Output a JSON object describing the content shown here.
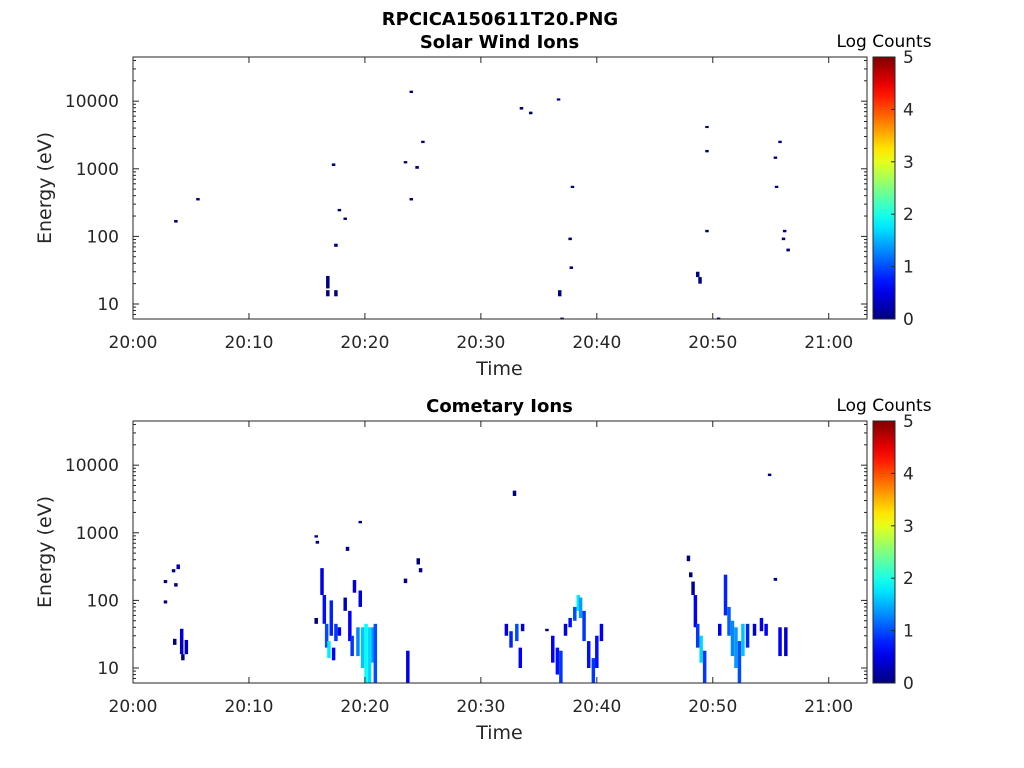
{
  "figure_title": "RPCICA150611T20.PNG",
  "colors": {
    "axis": "#262626",
    "colormap": "jet"
  },
  "chart_data": [
    {
      "type": "heatmap",
      "title": "Solar Wind Ions",
      "xlabel": "Time",
      "ylabel": "Energy (eV)",
      "x_ticks": [
        "20:00",
        "20:10",
        "20:20",
        "20:30",
        "20:40",
        "20:50",
        "21:00"
      ],
      "x_tick_minutes": [
        0,
        10,
        20,
        30,
        40,
        50,
        60
      ],
      "xlim_minutes": [
        0,
        63.3
      ],
      "y_scale": "log",
      "ylim": [
        6,
        45000
      ],
      "y_ticks": [
        "10",
        "100",
        "1000",
        "10000"
      ],
      "y_tick_values": [
        10,
        100,
        1000,
        10000
      ],
      "colorbar": {
        "label": "Log Counts",
        "range": [
          0,
          5
        ],
        "ticks": [
          "0",
          "1",
          "2",
          "3",
          "4",
          "5"
        ]
      },
      "points_format": "[minute, energy_low_eV, energy_high_eV, log_counts]",
      "points": [
        [
          3.7,
          160,
          175,
          0
        ],
        [
          5.6,
          340,
          370,
          0
        ],
        [
          16.8,
          17,
          26,
          0
        ],
        [
          16.8,
          13,
          16,
          0
        ],
        [
          17.5,
          13,
          16,
          0
        ],
        [
          17.5,
          70,
          78,
          0
        ],
        [
          17.3,
          1100,
          1200,
          0
        ],
        [
          17.8,
          235,
          255,
          0
        ],
        [
          18.3,
          175,
          190,
          0
        ],
        [
          23.5,
          1200,
          1300,
          0
        ],
        [
          24.0,
          13200,
          14300,
          0
        ],
        [
          24.0,
          340,
          370,
          0
        ],
        [
          24.5,
          1000,
          1100,
          0
        ],
        [
          25.0,
          2400,
          2600,
          0
        ],
        [
          33.5,
          7500,
          8200,
          0
        ],
        [
          34.3,
          6400,
          7000,
          0
        ],
        [
          36.7,
          10200,
          11000,
          0
        ],
        [
          36.8,
          13,
          16,
          0
        ],
        [
          37.0,
          6,
          6.3,
          0
        ],
        [
          37.7,
          88,
          96,
          0
        ],
        [
          37.8,
          33,
          36,
          0
        ],
        [
          37.9,
          520,
          560,
          0
        ],
        [
          48.7,
          25,
          30,
          0
        ],
        [
          48.9,
          20,
          25,
          0
        ],
        [
          49.5,
          4000,
          4300,
          0
        ],
        [
          49.5,
          1750,
          1900,
          0
        ],
        [
          49.5,
          115,
          125,
          0
        ],
        [
          50.5,
          6,
          6.3,
          0
        ],
        [
          55.4,
          1400,
          1520,
          0
        ],
        [
          55.5,
          520,
          560,
          0
        ],
        [
          55.8,
          2400,
          2600,
          0
        ],
        [
          56.1,
          88,
          96,
          0
        ],
        [
          56.2,
          115,
          125,
          0
        ],
        [
          56.5,
          60,
          66,
          0
        ]
      ]
    },
    {
      "type": "heatmap",
      "title": "Cometary Ions",
      "xlabel": "Time",
      "ylabel": "Energy (eV)",
      "x_ticks": [
        "20:00",
        "20:10",
        "20:20",
        "20:30",
        "20:40",
        "20:50",
        "21:00"
      ],
      "x_tick_minutes": [
        0,
        10,
        20,
        30,
        40,
        50,
        60
      ],
      "xlim_minutes": [
        0,
        63.3
      ],
      "y_scale": "log",
      "ylim": [
        6,
        45000
      ],
      "y_ticks": [
        "10",
        "100",
        "1000",
        "10000"
      ],
      "y_tick_values": [
        10,
        100,
        1000,
        10000
      ],
      "colorbar": {
        "label": "Log Counts",
        "range": [
          0,
          5
        ],
        "ticks": [
          "0",
          "1",
          "2",
          "3",
          "4",
          "5"
        ]
      },
      "points_format": "[minute, energy_low_eV, energy_high_eV, log_counts]",
      "points": [
        [
          2.8,
          180,
          200,
          0
        ],
        [
          2.8,
          90,
          100,
          0
        ],
        [
          3.5,
          260,
          290,
          0
        ],
        [
          3.7,
          160,
          180,
          0
        ],
        [
          3.6,
          22,
          27,
          0
        ],
        [
          3.9,
          290,
          340,
          0.3
        ],
        [
          4.2,
          16,
          38,
          0.4
        ],
        [
          4.3,
          13,
          16,
          0
        ],
        [
          4.6,
          16,
          26,
          0.3
        ],
        [
          15.8,
          850,
          920,
          0
        ],
        [
          15.9,
          690,
          760,
          0
        ],
        [
          15.8,
          45,
          55,
          0
        ],
        [
          16.3,
          120,
          300,
          0.5
        ],
        [
          16.5,
          45,
          120,
          0.7
        ],
        [
          16.7,
          20,
          45,
          1.0
        ],
        [
          16.9,
          14,
          25,
          1.8
        ],
        [
          17.1,
          30,
          100,
          0.8
        ],
        [
          17.3,
          13,
          20,
          0.6
        ],
        [
          17.5,
          25,
          45,
          0.9
        ],
        [
          17.8,
          30,
          40,
          0.5
        ],
        [
          18.5,
          540,
          620,
          0
        ],
        [
          18.3,
          70,
          110,
          0.3
        ],
        [
          18.7,
          25,
          70,
          0.6
        ],
        [
          18.9,
          15,
          30,
          0.9
        ],
        [
          19.1,
          130,
          200,
          0.4
        ],
        [
          19.4,
          15,
          40,
          1.3
        ],
        [
          19.6,
          1380,
          1500,
          0
        ],
        [
          19.6,
          80,
          140,
          0.5
        ],
        [
          19.8,
          10,
          40,
          1.6
        ],
        [
          20.1,
          6,
          45,
          1.9
        ],
        [
          20.4,
          6,
          40,
          1.7
        ],
        [
          20.7,
          12,
          40,
          1.4
        ],
        [
          20.9,
          6,
          45,
          1.0
        ],
        [
          23.5,
          180,
          210,
          0
        ],
        [
          23.7,
          6,
          18,
          0.5
        ],
        [
          24.6,
          340,
          420,
          0
        ],
        [
          24.8,
          260,
          300,
          0
        ],
        [
          32.9,
          3500,
          4200,
          0
        ],
        [
          32.2,
          30,
          45,
          0.5
        ],
        [
          32.6,
          20,
          35,
          0.8
        ],
        [
          33.1,
          25,
          45,
          1.0
        ],
        [
          33.4,
          10,
          20,
          0.6
        ],
        [
          33.6,
          35,
          45,
          0.4
        ],
        [
          35.7,
          35,
          38,
          0
        ],
        [
          36.2,
          12,
          30,
          0.6
        ],
        [
          36.6,
          8,
          20,
          0.7
        ],
        [
          36.9,
          6,
          18,
          0.9
        ],
        [
          37.3,
          30,
          45,
          0.5
        ],
        [
          37.7,
          40,
          55,
          0.7
        ],
        [
          38.1,
          50,
          80,
          1.0
        ],
        [
          38.4,
          70,
          120,
          1.8
        ],
        [
          38.6,
          55,
          110,
          1.4
        ],
        [
          38.9,
          25,
          70,
          0.9
        ],
        [
          39.3,
          10,
          25,
          0.7
        ],
        [
          39.7,
          6,
          14,
          0.9
        ],
        [
          40.0,
          10,
          30,
          0.7
        ],
        [
          40.4,
          25,
          45,
          0.6
        ],
        [
          47.9,
          380,
          460,
          0
        ],
        [
          48.1,
          220,
          260,
          0
        ],
        [
          48.3,
          120,
          190,
          0.2
        ],
        [
          48.5,
          40,
          120,
          0.6
        ],
        [
          48.7,
          20,
          45,
          0.9
        ],
        [
          49.0,
          12,
          30,
          1.7
        ],
        [
          49.3,
          6,
          18,
          0.9
        ],
        [
          50.6,
          30,
          45,
          0.5
        ],
        [
          51.1,
          60,
          240,
          0.8
        ],
        [
          51.4,
          30,
          80,
          1.1
        ],
        [
          51.7,
          15,
          50,
          1.3
        ],
        [
          52.0,
          10,
          40,
          1.4
        ],
        [
          52.3,
          6,
          25,
          1.0
        ],
        [
          52.6,
          15,
          45,
          1.6
        ],
        [
          53.0,
          20,
          45,
          0.8
        ],
        [
          53.6,
          30,
          45,
          0.4
        ],
        [
          54.2,
          35,
          55,
          0.5
        ],
        [
          54.6,
          30,
          45,
          0.6
        ],
        [
          55.4,
          195,
          215,
          0
        ],
        [
          54.9,
          6900,
          7500,
          0
        ],
        [
          55.8,
          15,
          40,
          0.6
        ],
        [
          56.3,
          15,
          40,
          0.4
        ]
      ]
    }
  ]
}
